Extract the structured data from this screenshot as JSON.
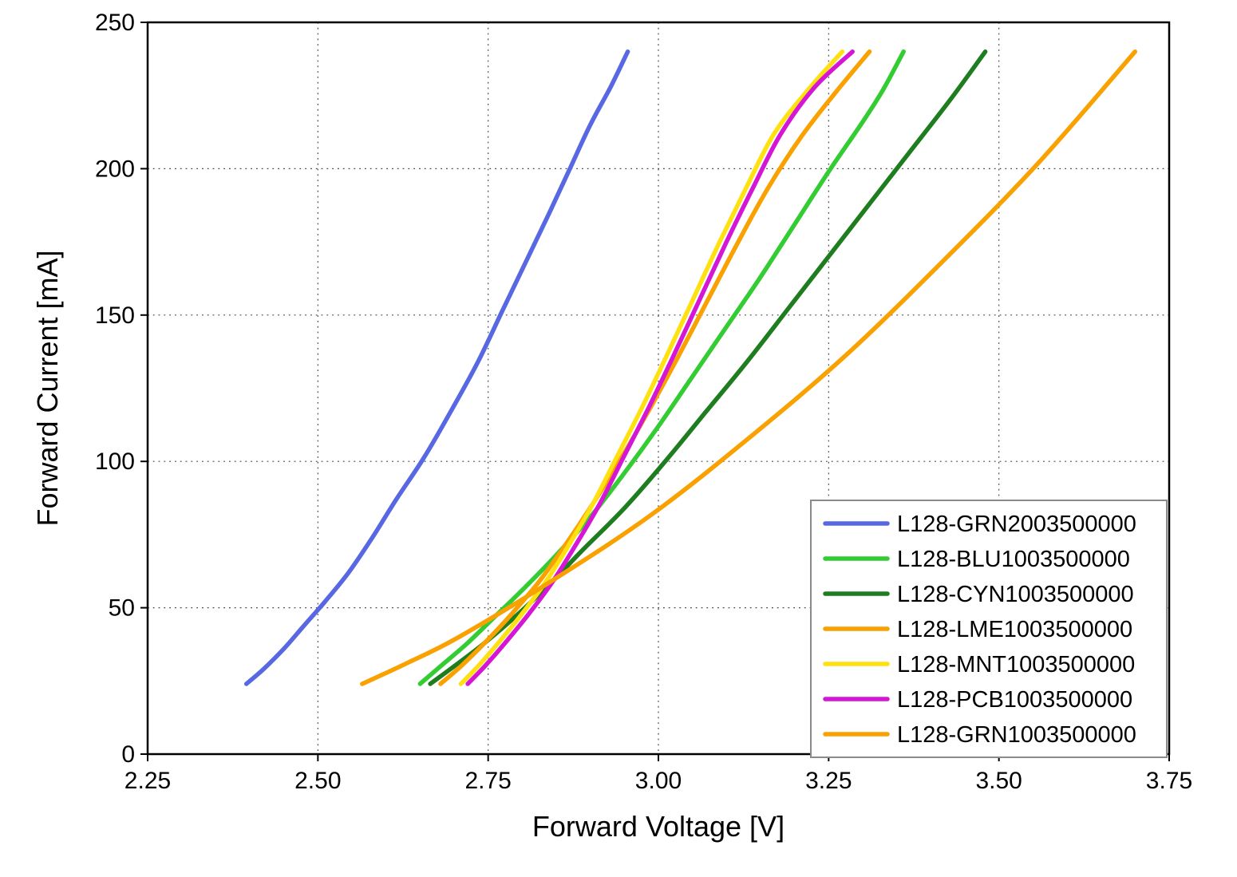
{
  "chart_data": {
    "type": "line",
    "title": "",
    "xlabel": "Forward Voltage [V]",
    "ylabel": "Forward Current [mA]",
    "xlim": [
      2.25,
      3.75
    ],
    "ylim": [
      0,
      250
    ],
    "xticks": {
      "values": [
        2.25,
        2.5,
        2.75,
        3.0,
        3.25,
        3.5,
        3.75
      ],
      "labels": [
        "2.25",
        "2.50",
        "2.75",
        "3.00",
        "3.25",
        "3.50",
        "3.75"
      ]
    },
    "yticks": {
      "values": [
        0,
        50,
        100,
        150,
        200,
        250
      ],
      "labels": [
        "0",
        "50",
        "100",
        "150",
        "200",
        "250"
      ]
    },
    "grid": "dotted",
    "background": "#ffffff",
    "axis_color": "#000000",
    "legend": {
      "position": "lower-right-inside",
      "border_color": "#8a8a8a",
      "background": "#ffffff"
    },
    "series": [
      {
        "name": "L128-GRN2003500000",
        "color": "#5868E3",
        "points": [
          [
            2.395,
            24
          ],
          [
            2.42,
            29
          ],
          [
            2.45,
            36
          ],
          [
            2.48,
            44
          ],
          [
            2.51,
            52
          ],
          [
            2.545,
            62
          ],
          [
            2.58,
            74
          ],
          [
            2.615,
            87
          ],
          [
            2.655,
            101
          ],
          [
            2.695,
            117
          ],
          [
            2.735,
            134
          ],
          [
            2.77,
            151
          ],
          [
            2.805,
            168
          ],
          [
            2.84,
            185
          ],
          [
            2.87,
            200
          ],
          [
            2.9,
            215
          ],
          [
            2.93,
            228
          ],
          [
            2.955,
            240
          ]
        ]
      },
      {
        "name": "L128-BLU1003500000",
        "color": "#33CC33",
        "points": [
          [
            2.65,
            24
          ],
          [
            2.68,
            30
          ],
          [
            2.72,
            38
          ],
          [
            2.76,
            47
          ],
          [
            2.8,
            56
          ],
          [
            2.85,
            68
          ],
          [
            2.9,
            81
          ],
          [
            2.95,
            96
          ],
          [
            3.0,
            112
          ],
          [
            3.05,
            129
          ],
          [
            3.1,
            146
          ],
          [
            3.15,
            163
          ],
          [
            3.2,
            181
          ],
          [
            3.25,
            199
          ],
          [
            3.3,
            216
          ],
          [
            3.33,
            227
          ],
          [
            3.36,
            240
          ]
        ]
      },
      {
        "name": "L128-CYN1003500000",
        "color": "#1E7D1E",
        "points": [
          [
            2.665,
            24
          ],
          [
            2.7,
            30
          ],
          [
            2.745,
            38
          ],
          [
            2.79,
            47
          ],
          [
            2.84,
            58
          ],
          [
            2.89,
            70
          ],
          [
            2.95,
            84
          ],
          [
            3.01,
            100
          ],
          [
            3.07,
            117
          ],
          [
            3.13,
            134
          ],
          [
            3.19,
            152
          ],
          [
            3.25,
            170
          ],
          [
            3.31,
            188
          ],
          [
            3.37,
            206
          ],
          [
            3.43,
            224
          ],
          [
            3.48,
            240
          ]
        ]
      },
      {
        "name": "L128-LME1003500000",
        "color": "#F9A100",
        "points": [
          [
            2.68,
            24
          ],
          [
            2.71,
            30
          ],
          [
            2.745,
            38
          ],
          [
            2.785,
            48
          ],
          [
            2.825,
            59
          ],
          [
            2.865,
            72
          ],
          [
            2.905,
            86
          ],
          [
            2.945,
            101
          ],
          [
            2.985,
            117
          ],
          [
            3.025,
            134
          ],
          [
            3.07,
            154
          ],
          [
            3.115,
            174
          ],
          [
            3.16,
            193
          ],
          [
            3.21,
            211
          ],
          [
            3.26,
            226
          ],
          [
            3.31,
            240
          ]
        ]
      },
      {
        "name": "L128-MNT1003500000",
        "color": "#FFE011",
        "points": [
          [
            2.71,
            24
          ],
          [
            2.735,
            30
          ],
          [
            2.765,
            38
          ],
          [
            2.8,
            48
          ],
          [
            2.835,
            59
          ],
          [
            2.87,
            72
          ],
          [
            2.905,
            86
          ],
          [
            2.94,
            102
          ],
          [
            2.975,
            118
          ],
          [
            3.01,
            135
          ],
          [
            3.05,
            155
          ],
          [
            3.09,
            175
          ],
          [
            3.13,
            194
          ],
          [
            3.17,
            212
          ],
          [
            3.22,
            227
          ],
          [
            3.27,
            240
          ]
        ]
      },
      {
        "name": "L128-PCB1003500000",
        "color": "#D516D5",
        "points": [
          [
            2.72,
            24
          ],
          [
            2.745,
            30
          ],
          [
            2.775,
            38
          ],
          [
            2.81,
            48
          ],
          [
            2.845,
            59
          ],
          [
            2.88,
            72
          ],
          [
            2.915,
            86
          ],
          [
            2.95,
            102
          ],
          [
            2.985,
            118
          ],
          [
            3.02,
            135
          ],
          [
            3.06,
            155
          ],
          [
            3.1,
            175
          ],
          [
            3.14,
            194
          ],
          [
            3.18,
            212
          ],
          [
            3.23,
            228
          ],
          [
            3.285,
            240
          ]
        ]
      },
      {
        "name": "L128-GRN1003500000",
        "color": "#F9A100",
        "points": [
          [
            2.565,
            24
          ],
          [
            2.63,
            31
          ],
          [
            2.707,
            40
          ],
          [
            2.849,
            60
          ],
          [
            2.991,
            82
          ],
          [
            3.133,
            108
          ],
          [
            3.274,
            136
          ],
          [
            3.416,
            168
          ],
          [
            3.558,
            202
          ],
          [
            3.7,
            240
          ]
        ]
      }
    ]
  }
}
